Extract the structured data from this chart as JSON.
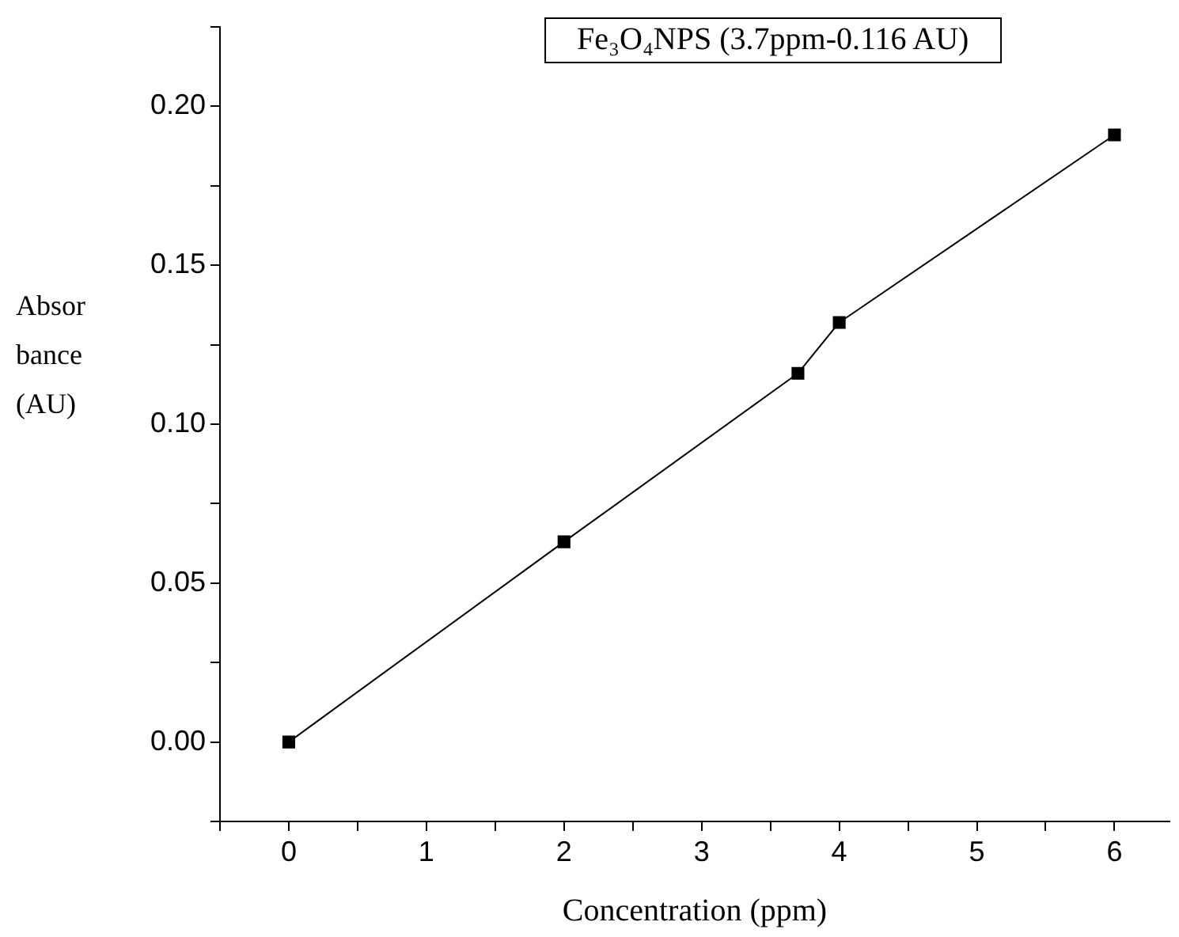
{
  "chart_data": {
    "type": "line",
    "title": "Fe₃O₄NPS (3.7ppm-0.116 AU)",
    "xlabel": "Concentration (ppm)",
    "ylabel": "Absorbance (AU)",
    "x": [
      0,
      2,
      3.7,
      4,
      6
    ],
    "series": [
      {
        "color": "#000000",
        "values": [
          0,
          0.063,
          0.116,
          0.132,
          0.191
        ]
      }
    ],
    "xlim": [
      -0.5,
      6.4
    ],
    "xticks": [
      {
        "value": -0.5,
        "label": null
      },
      0,
      {
        "value": 0.5,
        "label": null
      },
      1,
      {
        "value": 1.5,
        "label": null
      },
      2,
      {
        "value": 2.5,
        "label": null
      },
      3,
      {
        "value": 3.5,
        "label": null
      },
      4,
      {
        "value": 4.5,
        "label": null
      },
      5,
      {
        "value": 5.5,
        "label": null
      },
      6
    ],
    "ylim": [
      -0.025,
      0.225
    ],
    "yticks": [
      {
        "value": -0.025,
        "label": null
      },
      {
        "value": 0,
        "label": "0.00"
      },
      {
        "value": 0.025,
        "label": null
      },
      {
        "value": 0.05,
        "label": "0.05"
      },
      {
        "value": 0.075,
        "label": null
      },
      {
        "value": 0.1,
        "label": "0.10"
      },
      {
        "value": 0.125,
        "label": null
      },
      {
        "value": 0.15,
        "label": "0.15"
      },
      {
        "value": 0.175,
        "label": null
      },
      {
        "value": 0.2,
        "label": "0.20"
      },
      {
        "value": 0.225,
        "label": null
      }
    ],
    "grid": false,
    "legend": false,
    "marker": "square",
    "line_style": "solid"
  }
}
